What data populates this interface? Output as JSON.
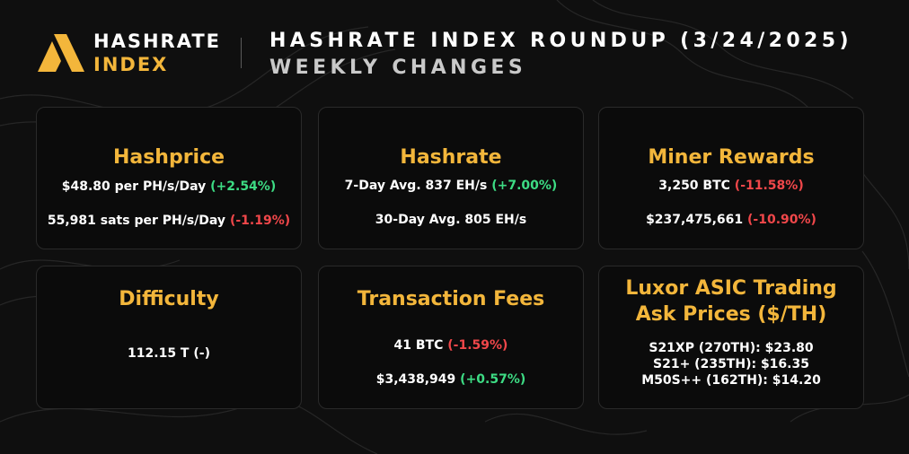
{
  "brand": {
    "line1": "HASHRATE",
    "line2": "INDEX",
    "accent": "#f3b63b"
  },
  "header": {
    "title": "HASHRATE INDEX ROUNDUP (3/24/2025)",
    "subtitle": "WEEKLY CHANGES"
  },
  "colors": {
    "positive": "#3ddc84",
    "negative": "#f0474a",
    "title": "#f3b63b",
    "background": "#0f0f0f"
  },
  "cards": {
    "hashprice": {
      "title": "Hashprice",
      "line1": {
        "text": "$48.80 per PH/s/Day",
        "change": "(+2.54%)"
      },
      "line2": {
        "text": "55,981 sats per PH/s/Day",
        "change": "(-1.19%)"
      }
    },
    "hashrate": {
      "title": "Hashrate",
      "line1": {
        "text": "7-Day Avg. 837 EH/s",
        "change": "(+7.00%)"
      },
      "line2": {
        "text": "30-Day Avg. 805 EH/s"
      }
    },
    "miner_rewards": {
      "title": "Miner Rewards",
      "line1": {
        "text": "3,250 BTC",
        "change": "(-11.58%)"
      },
      "line2": {
        "text": "$237,475,661",
        "change": "(-10.90%)"
      }
    },
    "difficulty": {
      "title": "Difficulty",
      "line1": {
        "text": "112.15 T (-)"
      }
    },
    "transaction_fees": {
      "title": "Transaction Fees",
      "line1": {
        "text": "41 BTC",
        "change": "(-1.59%)"
      },
      "line2": {
        "text": "$3,438,949",
        "change": "(+0.57%)"
      }
    },
    "asic_prices": {
      "title_line1": "Luxor ASIC Trading",
      "title_line2": "Ask Prices ($/TH)",
      "items": [
        "S21XP (270TH): $23.80",
        "S21+ (235TH): $16.35",
        "M50S++ (162TH): $14.20"
      ]
    }
  }
}
